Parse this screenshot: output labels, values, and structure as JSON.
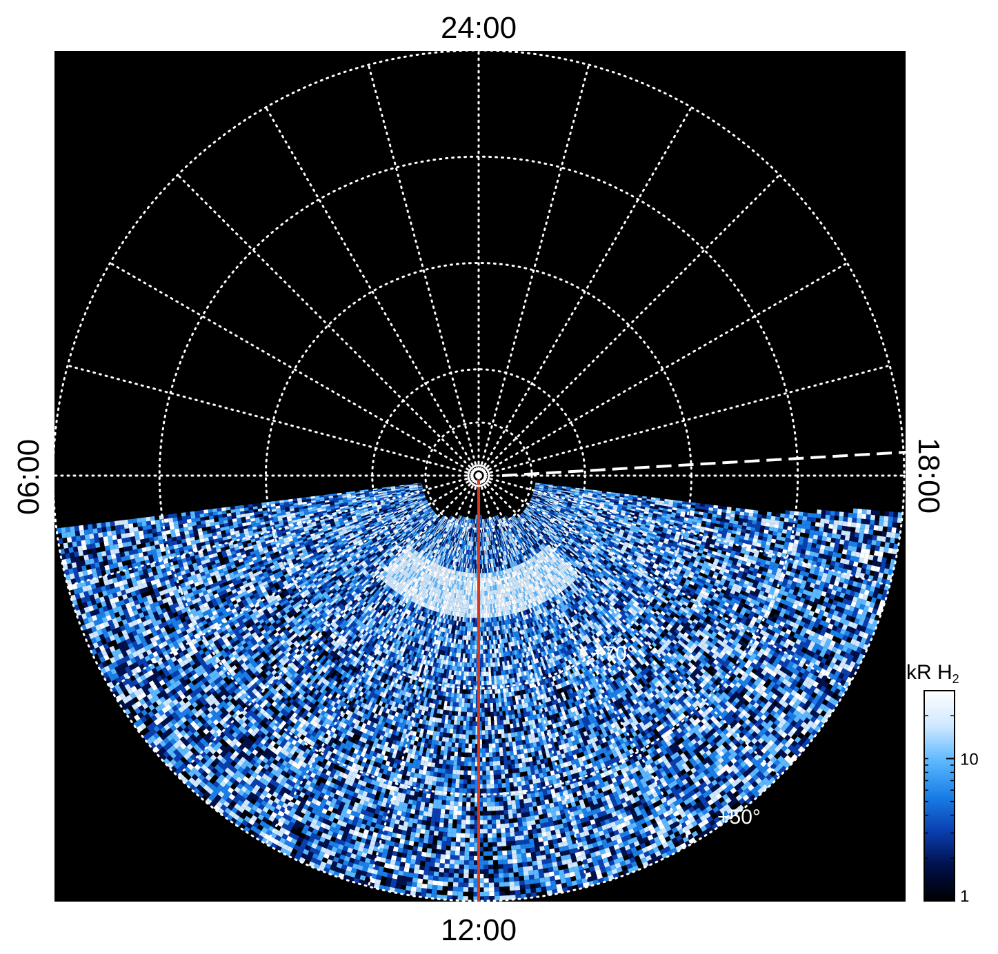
{
  "chart_data": {
    "type": "heatmap",
    "projection": "polar",
    "title": "",
    "local_time_labels": {
      "top": "24:00",
      "bottom": "12:00",
      "left": "06:00",
      "right": "18:00"
    },
    "latitude_labels": [
      "+70°",
      "+50°"
    ],
    "latitude_circles_deg": [
      85,
      80,
      70,
      60,
      50
    ],
    "meridian_spacing_hours": 1,
    "grid": true,
    "grid_style": "dotted-white",
    "colorbar": {
      "title": "kR H",
      "title_subscript": "2",
      "scale": "log",
      "range": [
        1,
        30
      ],
      "tick_values": [
        1,
        10
      ],
      "tick_labels": [
        "1",
        "10"
      ],
      "colors": [
        "#000000",
        "#00104a",
        "#0a3fb0",
        "#1a7fe8",
        "#5cb8ff",
        "#cfe8ff",
        "#ffffff"
      ]
    },
    "emission_region": {
      "description_lt": "dayside",
      "main_oval_lt_hours": [
        9.0,
        15.0
      ],
      "main_oval_colatitude_deg": [
        9,
        13
      ]
    },
    "markers": {
      "pole_marker": "circle",
      "red_line_lt": "12:00",
      "dashed_line": "towards 18:00"
    },
    "colors": {
      "background": "#000000",
      "grid": "#ffffff",
      "red_line": "#d2391e",
      "dashed_line": "#ffffff"
    }
  }
}
